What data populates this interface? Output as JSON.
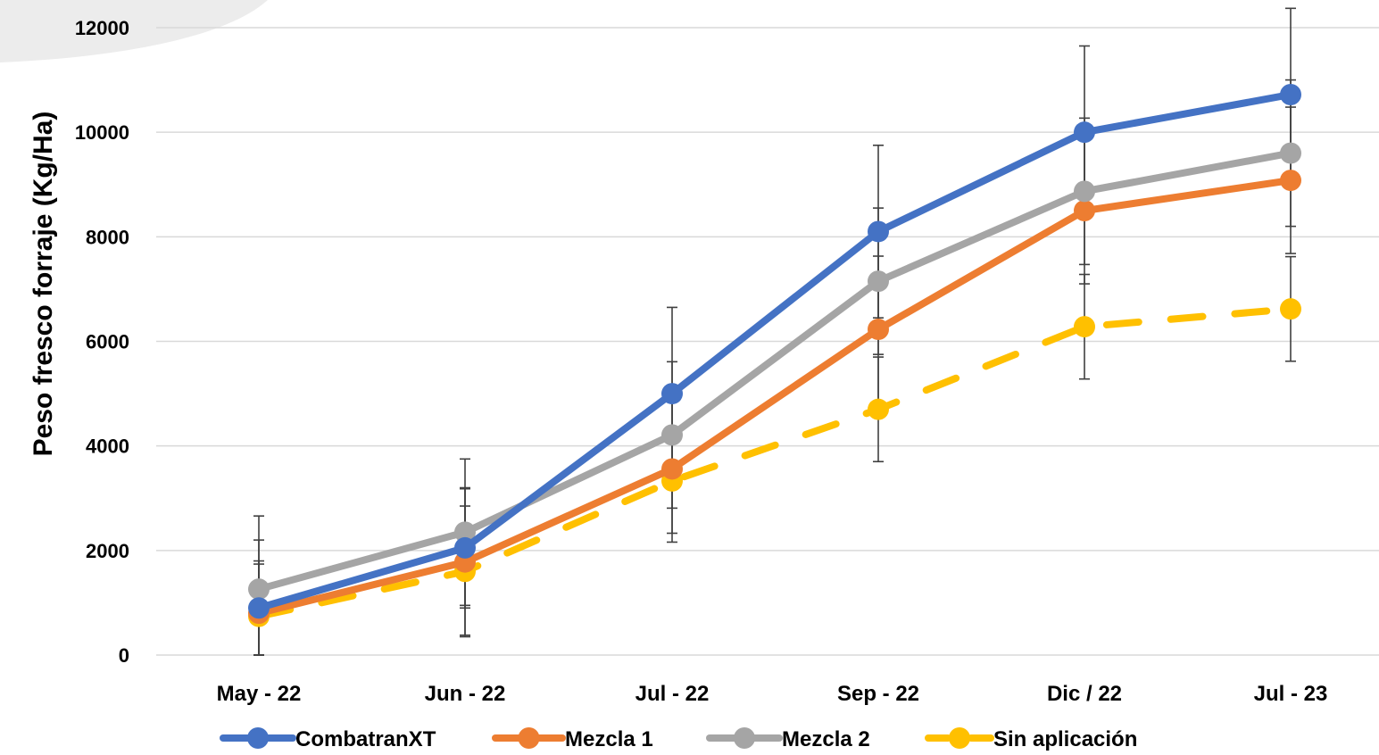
{
  "chart_data": {
    "type": "line",
    "title": "",
    "xlabel": "",
    "ylabel": "Peso fresco forraje (Kg/Ha)",
    "categories": [
      "May - 22",
      "Jun - 22",
      "Jul - 22",
      "Sep - 22",
      "Dic / 22",
      "Jul - 23"
    ],
    "ylim": [
      0,
      12000
    ],
    "yticks": [
      0,
      2000,
      4000,
      6000,
      8000,
      10000,
      12000
    ],
    "grid": true,
    "legend_position": "bottom",
    "series": [
      {
        "name": "CombatranXT",
        "color": "#4472C4",
        "dashed": false,
        "values": [
          900,
          2050,
          5000,
          8100,
          10000,
          10720
        ],
        "error": [
          900,
          1150,
          1650,
          1650,
          1650,
          1650
        ]
      },
      {
        "name": "Mezcla 1",
        "color": "#ED7D31",
        "dashed": false,
        "values": [
          800,
          1780,
          3560,
          6230,
          8500,
          9080
        ],
        "error": [
          1400,
          1400,
          1400,
          1400,
          1400,
          1400
        ]
      },
      {
        "name": "Mezcla 2",
        "color": "#A5A5A5",
        "dashed": false,
        "values": [
          1260,
          2350,
          4210,
          7150,
          8870,
          9600
        ],
        "error": [
          1400,
          1400,
          1400,
          1400,
          1400,
          1400
        ]
      },
      {
        "name": "Sin aplicación",
        "color": "#FFC000",
        "dashed": true,
        "values": [
          740,
          1600,
          3330,
          4700,
          6280,
          6620
        ],
        "error": [
          1000,
          1250,
          1000,
          1000,
          1000,
          1000
        ]
      }
    ]
  }
}
